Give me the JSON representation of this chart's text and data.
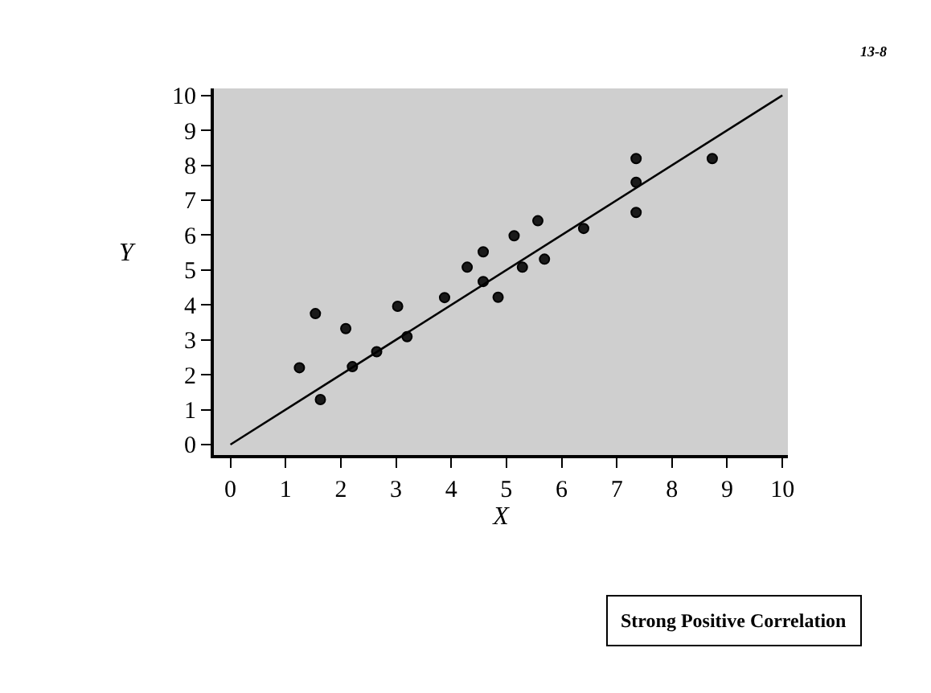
{
  "chart_data": {
    "type": "scatter",
    "xlabel": "X",
    "ylabel": "Y",
    "xlim": [
      -0.3,
      10.1
    ],
    "ylim": [
      -0.3,
      10.2
    ],
    "xticks": [
      0,
      1,
      2,
      3,
      4,
      5,
      6,
      7,
      8,
      9,
      10
    ],
    "yticks": [
      0,
      1,
      2,
      3,
      4,
      5,
      6,
      7,
      8,
      9,
      10
    ],
    "grid": false,
    "series": [
      {
        "color": "#1a1a1a",
        "marker": "circle",
        "x": [
          1.54,
          2.09,
          1.25,
          2.21,
          2.65,
          3.03,
          3.2,
          1.63,
          3.88,
          4.29,
          4.58,
          4.58,
          4.85,
          5.14,
          5.29,
          5.57,
          5.69,
          6.4,
          7.35,
          7.35,
          7.35,
          8.73
        ],
        "values": [
          3.75,
          3.32,
          2.2,
          2.23,
          2.66,
          3.96,
          3.09,
          1.29,
          4.21,
          5.08,
          5.52,
          4.67,
          4.22,
          5.98,
          5.08,
          6.41,
          5.31,
          6.19,
          8.19,
          7.51,
          6.65,
          8.19
        ]
      },
      {
        "type": "line",
        "color": "#000000",
        "x": [
          0,
          10
        ],
        "values": [
          0,
          10
        ],
        "marker": "none",
        "line_style": "solid"
      }
    ],
    "annotations": [
      "13-8",
      "Strong Positive Correlation"
    ]
  }
}
